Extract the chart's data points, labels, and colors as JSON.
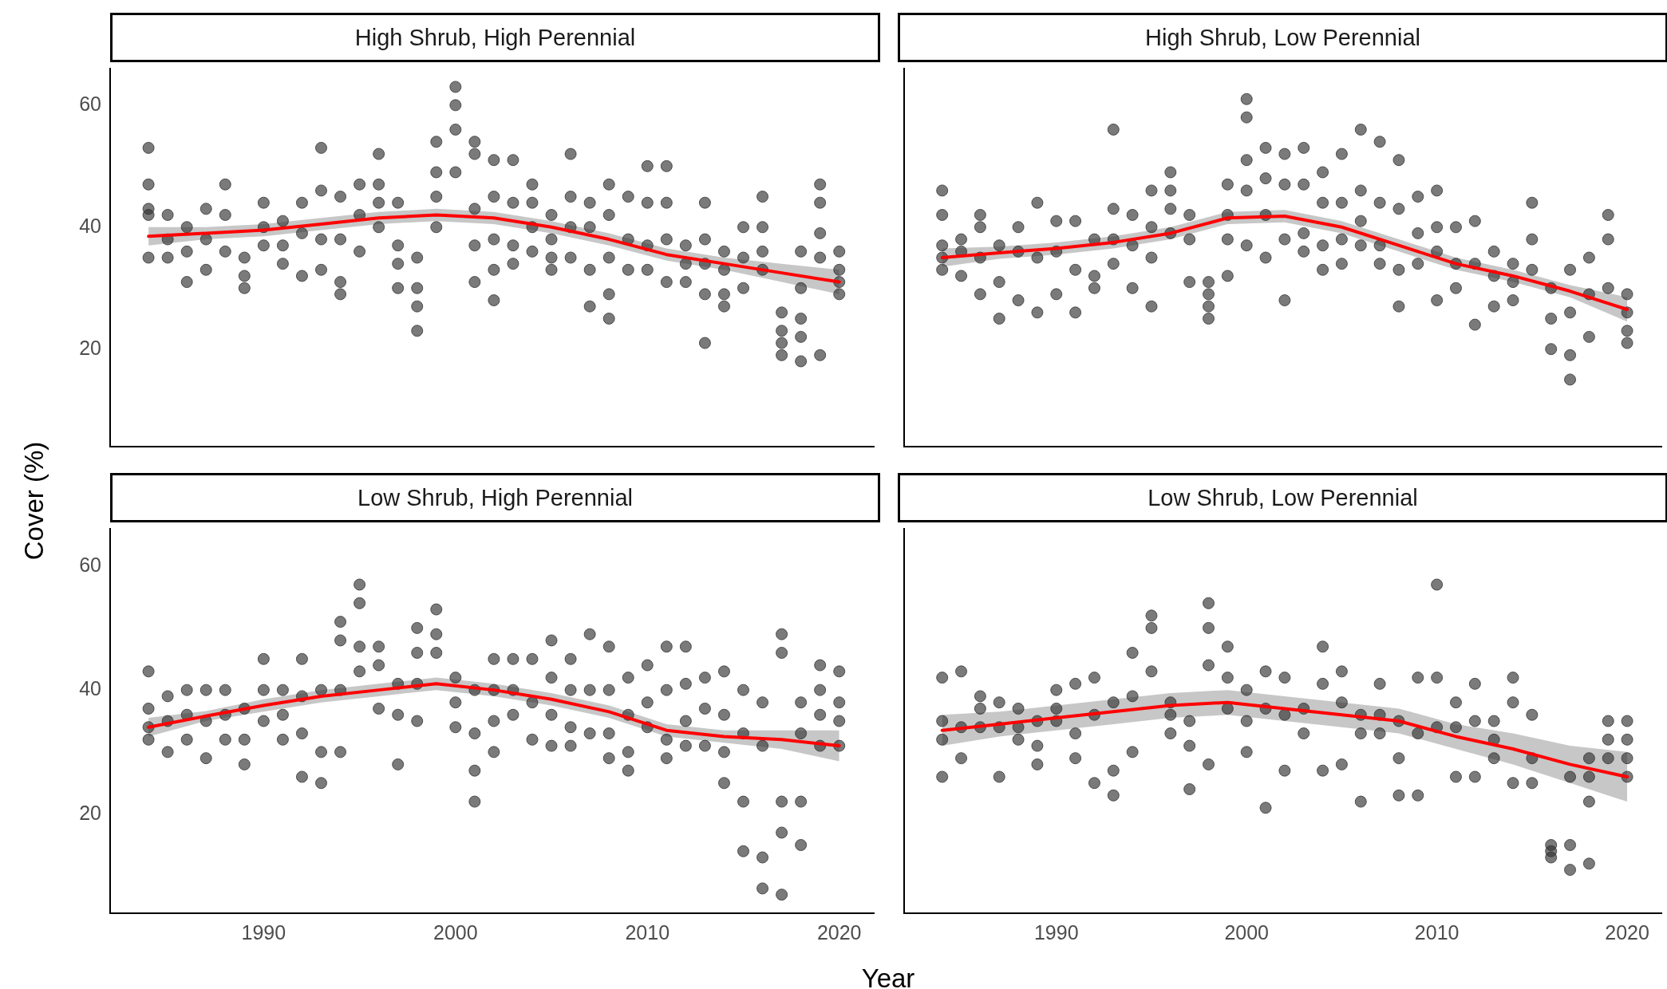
{
  "chart_data": [
    {
      "type": "scatter",
      "title": "High Shrub, High Perennial",
      "ylabel": "Cover (%)",
      "xlim": [
        1982,
        2021.8
      ],
      "xticks": [
        1990,
        2000,
        2010,
        2020
      ],
      "ylim": [
        4,
        66
      ],
      "yticks": [
        20,
        40,
        60
      ],
      "tick_labels": "y",
      "series": [
        {
          "type": "scatter",
          "marker": "circle",
          "color": "#333333",
          "x": [
            1984,
            1984,
            1984,
            1984,
            1984,
            1985,
            1985,
            1985,
            1986,
            1986,
            1986,
            1987,
            1987,
            1987,
            1988,
            1988,
            1988,
            1989,
            1989,
            1989,
            1990,
            1990,
            1990,
            1991,
            1991,
            1991,
            1992,
            1992,
            1992,
            1993,
            1993,
            1993,
            1993,
            1994,
            1994,
            1994,
            1994,
            1995,
            1995,
            1995,
            1996,
            1996,
            1996,
            1996,
            1997,
            1997,
            1997,
            1997,
            1998,
            1998,
            1998,
            1998,
            1999,
            1999,
            1999,
            1999,
            2000,
            2000,
            2000,
            2000,
            2001,
            2001,
            2001,
            2001,
            2001,
            2002,
            2002,
            2002,
            2002,
            2002,
            2003,
            2003,
            2003,
            2003,
            2004,
            2004,
            2004,
            2004,
            2005,
            2005,
            2005,
            2005,
            2006,
            2006,
            2006,
            2006,
            2007,
            2007,
            2007,
            2007,
            2008,
            2008,
            2008,
            2008,
            2008,
            2009,
            2009,
            2009,
            2010,
            2010,
            2010,
            2010,
            2011,
            2011,
            2011,
            2011,
            2012,
            2012,
            2012,
            2013,
            2013,
            2013,
            2013,
            2013,
            2014,
            2014,
            2014,
            2014,
            2015,
            2015,
            2015,
            2016,
            2016,
            2016,
            2016,
            2017,
            2017,
            2017,
            2017,
            2018,
            2018,
            2018,
            2018,
            2018,
            2019,
            2019,
            2019,
            2019,
            2019,
            2020,
            2020,
            2020,
            2020
          ],
          "values": [
            53,
            47,
            43,
            42,
            35,
            42,
            38,
            35,
            40,
            36,
            31,
            43,
            38,
            33,
            47,
            42,
            36,
            35,
            32,
            30,
            44,
            40,
            37,
            41,
            37,
            34,
            44,
            39,
            32,
            53,
            46,
            38,
            33,
            45,
            38,
            31,
            29,
            47,
            42,
            36,
            52,
            47,
            44,
            40,
            44,
            37,
            34,
            30,
            35,
            30,
            27,
            23,
            54,
            49,
            45,
            40,
            63,
            60,
            56,
            49,
            54,
            52,
            43,
            37,
            31,
            51,
            45,
            38,
            33,
            28,
            51,
            44,
            37,
            34,
            47,
            44,
            40,
            36,
            42,
            38,
            35,
            33,
            52,
            45,
            40,
            35,
            44,
            40,
            33,
            27,
            47,
            42,
            35,
            29,
            25,
            45,
            38,
            33,
            50,
            44,
            37,
            33,
            50,
            44,
            38,
            31,
            37,
            34,
            31,
            44,
            38,
            34,
            29,
            21,
            36,
            33,
            29,
            27,
            40,
            35,
            30,
            45,
            40,
            36,
            33,
            26,
            23,
            21,
            19,
            36,
            30,
            25,
            22,
            18,
            47,
            44,
            39,
            35,
            19,
            36,
            33,
            31,
            29
          ]
        },
        {
          "type": "line",
          "color": "#ff0000",
          "x": [
            1984,
            1987,
            1990,
            1993,
            1996,
            1999,
            2002,
            2005,
            2008,
            2011,
            2014,
            2017,
            2020
          ],
          "values": [
            38.5,
            39,
            39.5,
            40.5,
            41.5,
            42,
            41.5,
            40,
            38,
            35.5,
            34,
            32.5,
            31
          ],
          "lower": [
            37,
            38,
            38.5,
            39.5,
            40.5,
            41,
            40.5,
            39,
            37,
            34.5,
            33,
            31,
            29
          ],
          "upper": [
            40,
            40,
            40.5,
            41.5,
            42.5,
            43,
            42.5,
            41,
            39,
            36.5,
            35,
            34,
            33
          ]
        }
      ]
    },
    {
      "type": "scatter",
      "title": "High Shrub, Low Perennial",
      "xlim": [
        1982,
        2021.8
      ],
      "xticks": [
        1990,
        2000,
        2010,
        2020
      ],
      "ylim": [
        4,
        66
      ],
      "yticks": [
        20,
        40,
        60
      ],
      "tick_labels": false,
      "series": [
        {
          "type": "scatter",
          "marker": "circle",
          "color": "#333333",
          "x": [
            1984,
            1984,
            1984,
            1984,
            1984,
            1985,
            1985,
            1985,
            1986,
            1986,
            1986,
            1986,
            1987,
            1987,
            1987,
            1988,
            1988,
            1988,
            1989,
            1989,
            1989,
            1990,
            1990,
            1990,
            1991,
            1991,
            1991,
            1992,
            1992,
            1992,
            1993,
            1993,
            1993,
            1993,
            1994,
            1994,
            1994,
            1995,
            1995,
            1995,
            1995,
            1996,
            1996,
            1996,
            1996,
            1997,
            1997,
            1997,
            1998,
            1998,
            1998,
            1998,
            1999,
            1999,
            1999,
            1999,
            2000,
            2000,
            2000,
            2000,
            2000,
            2001,
            2001,
            2001,
            2001,
            2002,
            2002,
            2002,
            2002,
            2003,
            2003,
            2003,
            2003,
            2004,
            2004,
            2004,
            2004,
            2005,
            2005,
            2005,
            2005,
            2006,
            2006,
            2006,
            2006,
            2007,
            2007,
            2007,
            2007,
            2008,
            2008,
            2008,
            2008,
            2009,
            2009,
            2009,
            2010,
            2010,
            2010,
            2010,
            2011,
            2011,
            2011,
            2012,
            2012,
            2012,
            2013,
            2013,
            2013,
            2014,
            2014,
            2014,
            2015,
            2015,
            2015,
            2016,
            2016,
            2016,
            2017,
            2017,
            2017,
            2017,
            2018,
            2018,
            2018,
            2019,
            2019,
            2019,
            2020,
            2020,
            2020,
            2020
          ],
          "values": [
            46,
            42,
            37,
            35,
            33,
            38,
            36,
            32,
            42,
            40,
            35,
            29,
            37,
            31,
            25,
            40,
            36,
            28,
            44,
            35,
            26,
            41,
            36,
            29,
            41,
            33,
            26,
            38,
            32,
            30,
            56,
            43,
            38,
            34,
            42,
            37,
            30,
            46,
            40,
            35,
            27,
            49,
            46,
            43,
            39,
            42,
            38,
            31,
            31,
            29,
            27,
            25,
            47,
            42,
            38,
            32,
            61,
            58,
            51,
            46,
            37,
            53,
            48,
            42,
            35,
            52,
            47,
            38,
            28,
            53,
            47,
            39,
            36,
            49,
            44,
            37,
            33,
            52,
            44,
            38,
            34,
            56,
            46,
            41,
            37,
            54,
            44,
            37,
            34,
            51,
            43,
            33,
            27,
            45,
            39,
            34,
            46,
            40,
            36,
            28,
            40,
            34,
            30,
            41,
            34,
            24,
            36,
            32,
            27,
            34,
            31,
            28,
            44,
            38,
            33,
            30,
            25,
            20,
            33,
            26,
            19,
            15,
            35,
            29,
            22,
            42,
            38,
            30,
            29,
            26,
            23,
            21
          ]
        },
        {
          "type": "line",
          "color": "#ff0000",
          "x": [
            1984,
            1987,
            1990,
            1993,
            1996,
            1999,
            2002,
            2005,
            2008,
            2011,
            2014,
            2017,
            2020
          ],
          "values": [
            35,
            35.8,
            36.5,
            37.5,
            39,
            41.5,
            41.8,
            40,
            37,
            34,
            32,
            29.5,
            26.5
          ],
          "lower": [
            33.5,
            34.8,
            35.5,
            36.5,
            38,
            40.5,
            40.8,
            39,
            36,
            33,
            31,
            28.5,
            24.5
          ],
          "upper": [
            36.5,
            36.8,
            37.5,
            38.5,
            40,
            42.5,
            42.8,
            41,
            38,
            35,
            33,
            30.5,
            28.5
          ]
        }
      ]
    },
    {
      "type": "scatter",
      "title": "Low Shrub, High Perennial",
      "xlabel": "Year",
      "xlim": [
        1982,
        2021.8
      ],
      "xticks": [
        1990,
        2000,
        2010,
        2020
      ],
      "ylim": [
        4,
        66
      ],
      "yticks": [
        20,
        40,
        60
      ],
      "series": [
        {
          "type": "scatter",
          "marker": "circle",
          "color": "#333333",
          "x": [
            1984,
            1984,
            1984,
            1984,
            1985,
            1985,
            1985,
            1986,
            1986,
            1986,
            1987,
            1987,
            1987,
            1988,
            1988,
            1988,
            1989,
            1989,
            1989,
            1990,
            1990,
            1990,
            1991,
            1991,
            1991,
            1992,
            1992,
            1992,
            1992,
            1993,
            1993,
            1993,
            1994,
            1994,
            1994,
            1994,
            1995,
            1995,
            1995,
            1995,
            1996,
            1996,
            1996,
            1997,
            1997,
            1997,
            1998,
            1998,
            1998,
            1998,
            1999,
            1999,
            1999,
            2000,
            2000,
            2000,
            2001,
            2001,
            2001,
            2001,
            2002,
            2002,
            2002,
            2002,
            2003,
            2003,
            2003,
            2004,
            2004,
            2004,
            2005,
            2005,
            2005,
            2005,
            2006,
            2006,
            2006,
            2006,
            2007,
            2007,
            2007,
            2008,
            2008,
            2008,
            2008,
            2009,
            2009,
            2009,
            2009,
            2010,
            2010,
            2010,
            2011,
            2011,
            2011,
            2011,
            2012,
            2012,
            2012,
            2012,
            2013,
            2013,
            2013,
            2014,
            2014,
            2014,
            2014,
            2015,
            2015,
            2015,
            2015,
            2016,
            2016,
            2016,
            2016,
            2017,
            2017,
            2017,
            2017,
            2017,
            2018,
            2018,
            2018,
            2018,
            2019,
            2019,
            2019,
            2019,
            2020,
            2020,
            2020,
            2020
          ],
          "values": [
            43,
            37,
            34,
            32,
            39,
            35,
            30,
            40,
            36,
            32,
            40,
            35,
            29,
            40,
            36,
            32,
            37,
            32,
            28,
            45,
            40,
            35,
            40,
            36,
            32,
            45,
            39,
            33,
            26,
            40,
            30,
            25,
            51,
            48,
            40,
            30,
            57,
            54,
            47,
            43,
            47,
            44,
            37,
            41,
            36,
            28,
            50,
            46,
            41,
            35,
            53,
            49,
            46,
            42,
            38,
            34,
            40,
            33,
            27,
            22,
            45,
            40,
            35,
            30,
            45,
            40,
            36,
            45,
            38,
            32,
            48,
            42,
            36,
            31,
            45,
            40,
            34,
            31,
            49,
            40,
            33,
            47,
            40,
            33,
            29,
            42,
            36,
            30,
            27,
            44,
            38,
            34,
            47,
            40,
            32,
            29,
            47,
            41,
            35,
            31,
            42,
            37,
            31,
            43,
            36,
            30,
            25,
            40,
            33,
            22,
            14,
            38,
            31,
            13,
            8,
            49,
            46,
            22,
            17,
            7,
            38,
            33,
            22,
            15,
            44,
            40,
            36,
            31,
            43,
            38,
            35,
            31
          ]
        },
        {
          "type": "line",
          "color": "#ff0000",
          "x": [
            1984,
            1987,
            1990,
            1993,
            1996,
            1999,
            2002,
            2005,
            2008,
            2011,
            2014,
            2017,
            2020
          ],
          "values": [
            34,
            35.8,
            37.5,
            39,
            40,
            41,
            40,
            38.5,
            36.5,
            33.5,
            32.5,
            32,
            31
          ],
          "lower": [
            32.5,
            35,
            36.5,
            38,
            39,
            40,
            39,
            37.5,
            35.5,
            32.5,
            31.5,
            30.5,
            28.5
          ],
          "upper": [
            35.5,
            36.6,
            38.5,
            40,
            41,
            42,
            41,
            39.5,
            37.5,
            34.5,
            33.5,
            33.5,
            33.5
          ]
        }
      ]
    },
    {
      "type": "scatter",
      "title": "Low Shrub, Low Perennial",
      "xlim": [
        1982,
        2021.8
      ],
      "xticks": [
        1990,
        2000,
        2010,
        2020
      ],
      "ylim": [
        4,
        66
      ],
      "yticks": [
        20,
        40,
        60
      ],
      "tick_labels": "x",
      "series": [
        {
          "type": "scatter",
          "marker": "circle",
          "color": "#333333",
          "x": [
            1984,
            1984,
            1984,
            1984,
            1985,
            1985,
            1985,
            1986,
            1986,
            1986,
            1987,
            1987,
            1987,
            1988,
            1988,
            1988,
            1989,
            1989,
            1989,
            1990,
            1990,
            1990,
            1991,
            1991,
            1991,
            1992,
            1992,
            1992,
            1993,
            1993,
            1993,
            1994,
            1994,
            1994,
            1995,
            1995,
            1995,
            1996,
            1996,
            1996,
            1997,
            1997,
            1997,
            1998,
            1998,
            1998,
            1998,
            1999,
            1999,
            1999,
            2000,
            2000,
            2000,
            2001,
            2001,
            2001,
            2002,
            2002,
            2002,
            2003,
            2003,
            2004,
            2004,
            2004,
            2005,
            2005,
            2005,
            2006,
            2006,
            2006,
            2007,
            2007,
            2007,
            2008,
            2008,
            2008,
            2009,
            2009,
            2009,
            2010,
            2010,
            2010,
            2011,
            2011,
            2011,
            2012,
            2012,
            2012,
            2013,
            2013,
            2013,
            2014,
            2014,
            2014,
            2015,
            2015,
            2015,
            2016,
            2016,
            2016,
            2017,
            2017,
            2017,
            2018,
            2018,
            2018,
            2018,
            2019,
            2019,
            2019,
            2020,
            2020,
            2020,
            2020
          ],
          "values": [
            42,
            35,
            32,
            26,
            43,
            34,
            29,
            39,
            37,
            34,
            38,
            34,
            26,
            37,
            34,
            32,
            35,
            31,
            28,
            40,
            37,
            35,
            41,
            33,
            29,
            42,
            36,
            25,
            38,
            27,
            23,
            46,
            39,
            30,
            52,
            50,
            43,
            38,
            36,
            33,
            35,
            31,
            24,
            54,
            50,
            44,
            28,
            47,
            42,
            37,
            40,
            35,
            30,
            43,
            37,
            21,
            42,
            36,
            27,
            37,
            33,
            47,
            41,
            27,
            43,
            38,
            28,
            36,
            33,
            22,
            41,
            36,
            33,
            35,
            29,
            23,
            42,
            33,
            23,
            57,
            42,
            34,
            38,
            34,
            26,
            41,
            35,
            26,
            35,
            32,
            29,
            42,
            38,
            25,
            36,
            29,
            25,
            15,
            14,
            13,
            26,
            15,
            11,
            29,
            26,
            22,
            12,
            35,
            32,
            29,
            35,
            32,
            29,
            26
          ]
        },
        {
          "type": "line",
          "color": "#ff0000",
          "x": [
            1984,
            1987,
            1990,
            1993,
            1996,
            1999,
            2002,
            2005,
            2008,
            2011,
            2014,
            2017,
            2020
          ],
          "values": [
            33.5,
            34.5,
            35.5,
            36.5,
            37.5,
            38,
            37,
            36,
            35,
            32.5,
            30.5,
            28,
            26
          ],
          "lower": [
            31,
            32.5,
            33.5,
            34.5,
            35.5,
            36,
            35,
            34,
            33,
            30.5,
            28,
            25,
            22
          ],
          "upper": [
            36,
            36.5,
            37.5,
            38.5,
            39.5,
            40,
            39,
            38,
            37,
            34.5,
            33,
            31,
            30
          ]
        }
      ]
    }
  ]
}
